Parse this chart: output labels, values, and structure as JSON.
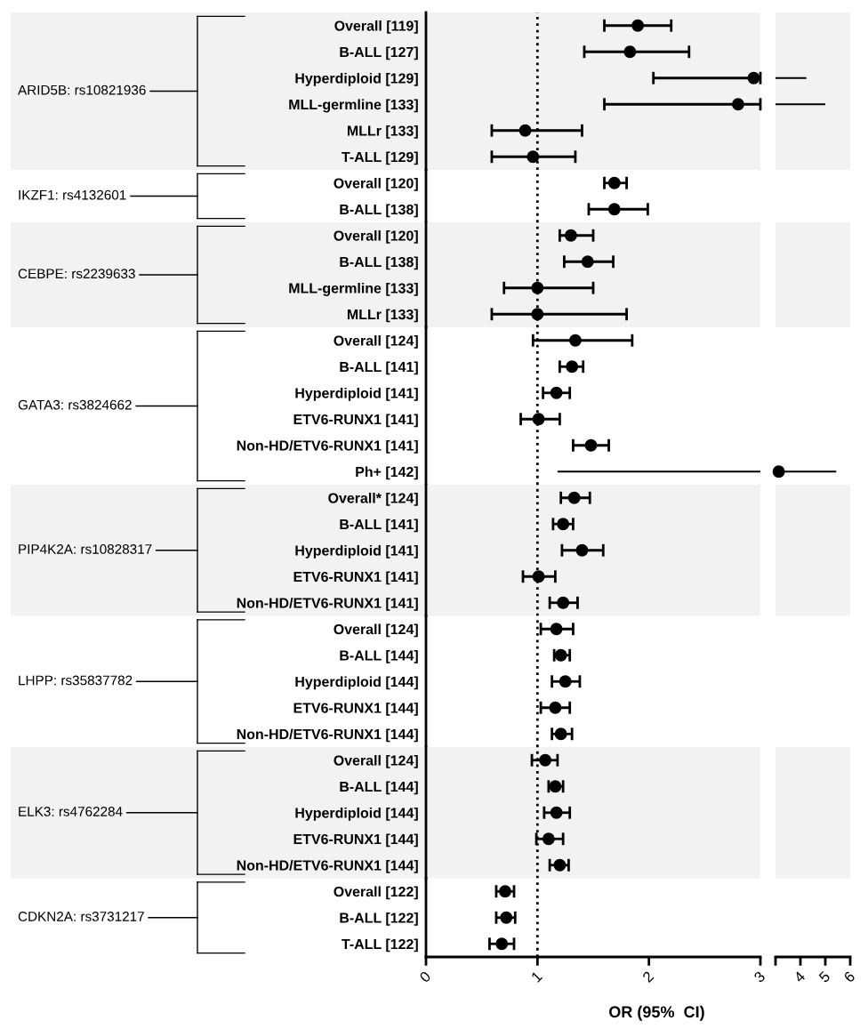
{
  "chart_data": [
    {
      "type": "scatter",
      "orientation": "horizontal",
      "marker": "circle",
      "grid": false,
      "tick_labels": "y",
      "ylabel": "ARID5B: rs10821936",
      "categories": [
        "Overall [119]",
        "B-ALL [127]",
        "Hyperdiploid [129]",
        "MLL-germline [133]",
        "MLLr [133]",
        "T-ALL [129]"
      ],
      "series": [
        {
          "color": "#000000",
          "values": [
            1.9,
            1.83,
            2.94,
            2.8,
            0.89,
            0.96
          ],
          "errors": [
            [
              1.6,
              2.2
            ],
            [
              1.42,
              2.36
            ],
            [
              2.04,
              3
            ],
            [
              1.6,
              3
            ],
            [
              0.59,
              1.4
            ],
            [
              0.59,
              1.34
            ]
          ]
        }
      ],
      "xlim": [
        0,
        3
      ],
      "xticks": [
        0,
        1,
        2,
        3
      ],
      "ref_lines": [
        {
          "axis": "x",
          "value": 1,
          "line_style": "dotted",
          "color": "#000000"
        }
      ],
      "bands": [
        {
          "axis": "y",
          "from": "Overall [119]",
          "to": "T-ALL [129]",
          "color": "#f2f2f2"
        }
      ]
    },
    {
      "type": "scatter",
      "orientation": "horizontal",
      "grid": false,
      "tick_labels": false,
      "categories": [
        "Overall [119]",
        "B-ALL [127]",
        "Hyperdiploid [129]",
        "MLL-germline [133]",
        "MLLr [133]",
        "T-ALL [129]"
      ],
      "series": [
        {
          "type": "bar",
          "color": "#000000",
          "base": [
            null,
            null,
            3,
            3,
            null,
            null
          ],
          "values": [
            null,
            null,
            1.24,
            2.0,
            null,
            null
          ]
        }
      ],
      "xlim": [
        3,
        6
      ],
      "bands": [
        {
          "axis": "y",
          "from": "Overall [119]",
          "to": "T-ALL [129]",
          "color": "#f2f2f2"
        }
      ]
    },
    {
      "type": "scatter",
      "orientation": "horizontal",
      "marker": "circle",
      "grid": false,
      "tick_labels": "y",
      "ylabel": "IKZF1: rs4132601",
      "categories": [
        "Overall [120]",
        "B-ALL [138]"
      ],
      "series": [
        {
          "color": "#000000",
          "values": [
            1.69,
            1.69
          ],
          "errors": [
            [
              1.6,
              1.8
            ],
            [
              1.46,
              1.99
            ]
          ]
        }
      ],
      "xlim": [
        0,
        3
      ],
      "xticks": [
        0,
        1,
        2,
        3
      ],
      "ref_lines": [
        {
          "axis": "x",
          "value": 1,
          "line_style": "dotted",
          "color": "#000000"
        }
      ]
    },
    {
      "type": "scatter",
      "orientation": "horizontal",
      "marker": "circle",
      "grid": false,
      "tick_labels": "y",
      "ylabel": "CEBPE: rs2239633",
      "categories": [
        "Overall [120]",
        "B-ALL [138]",
        "MLL-germline [133]",
        "MLLr [133]"
      ],
      "series": [
        {
          "color": "#000000",
          "values": [
            1.3,
            1.45,
            1.0,
            1.0
          ],
          "errors": [
            [
              1.2,
              1.5
            ],
            [
              1.24,
              1.68
            ],
            [
              0.7,
              1.5
            ],
            [
              0.59,
              1.8
            ]
          ]
        }
      ],
      "xlim": [
        0,
        3
      ],
      "xticks": [
        0,
        1,
        2,
        3
      ],
      "ref_lines": [
        {
          "axis": "x",
          "value": 1,
          "line_style": "dotted",
          "color": "#000000"
        }
      ],
      "bands": [
        {
          "axis": "y",
          "from": "Overall [120]",
          "to": "MLLr [133]",
          "color": "#f2f2f2"
        }
      ]
    },
    {
      "type": "scatter",
      "orientation": "horizontal",
      "grid": false,
      "tick_labels": false,
      "categories": [
        "Overall [120]",
        "B-ALL [138]",
        "MLL-germline [133]",
        "MLLr [133]"
      ],
      "series": [
        {
          "color": "#000000",
          "values": [
            null,
            null,
            null,
            null
          ]
        }
      ],
      "xlim": [
        3,
        6
      ],
      "bands": [
        {
          "axis": "y",
          "from": "Overall [120]",
          "to": "MLLr [133]",
          "color": "#f2f2f2"
        }
      ]
    },
    {
      "type": "scatter",
      "orientation": "horizontal",
      "marker": "circle",
      "grid": false,
      "tick_labels": "y",
      "ylabel": "GATA3: rs3824662",
      "categories": [
        "Overall [124]",
        "B-ALL [141]",
        "Hyperdiploid [141]",
        "ETV6-RUNX1 [141]",
        "Non-HD/ETV6-RUNX1 [141]",
        "Ph+ [142]"
      ],
      "series": [
        {
          "color": "#000000",
          "values": [
            1.34,
            1.31,
            1.17,
            1.01,
            1.48,
            null
          ],
          "errors": [
            [
              0.96,
              1.85
            ],
            [
              1.2,
              1.41
            ],
            [
              1.05,
              1.29
            ],
            [
              0.85,
              1.2
            ],
            [
              1.32,
              1.64
            ],
            null
          ]
        },
        {
          "type": "bar",
          "color": "#000000",
          "base": [
            null,
            null,
            null,
            null,
            null,
            1.18
          ],
          "values": [
            null,
            null,
            null,
            null,
            null,
            1.82
          ]
        }
      ],
      "xlim": [
        0,
        3
      ],
      "xticks": [
        0,
        1,
        2,
        3
      ],
      "ref_lines": [
        {
          "axis": "x",
          "value": 1,
          "line_style": "dotted",
          "color": "#000000"
        }
      ]
    },
    {
      "type": "scatter",
      "orientation": "horizontal",
      "marker": "circle",
      "grid": false,
      "tick_labels": false,
      "categories": [
        "Overall [124]",
        "B-ALL [141]",
        "Hyperdiploid [141]",
        "ETV6-RUNX1 [141]",
        "Non-HD/ETV6-RUNX1 [141]",
        "Ph+ [142]"
      ],
      "series": [
        {
          "type": "bar",
          "color": "#000000",
          "base": [
            null,
            null,
            null,
            null,
            null,
            3
          ],
          "values": [
            null,
            null,
            null,
            null,
            null,
            2.44
          ]
        },
        {
          "color": "#000000",
          "values": [
            null,
            null,
            null,
            null,
            null,
            3.13
          ]
        }
      ],
      "xlim": [
        3,
        6
      ]
    },
    {
      "type": "scatter",
      "orientation": "horizontal",
      "marker": "circle",
      "grid": false,
      "tick_labels": "y",
      "ylabel": "PIP4K2A: rs10828317",
      "categories": [
        "Overall* [124]",
        "B-ALL [141]",
        "Hyperdiploid [141]",
        "ETV6-RUNX1 [141]",
        "Non-HD/ETV6-RUNX1 [141]"
      ],
      "series": [
        {
          "color": "#000000",
          "values": [
            1.33,
            1.23,
            1.4,
            1.01,
            1.23
          ],
          "errors": [
            [
              1.21,
              1.47
            ],
            [
              1.14,
              1.32
            ],
            [
              1.22,
              1.59
            ],
            [
              0.87,
              1.16
            ],
            [
              1.11,
              1.36
            ]
          ]
        }
      ],
      "xlim": [
        0,
        3
      ],
      "xticks": [
        0,
        1,
        2,
        3
      ],
      "ref_lines": [
        {
          "axis": "x",
          "value": 1,
          "line_style": "dotted",
          "color": "#000000"
        }
      ],
      "bands": [
        {
          "axis": "y",
          "from": "Overall* [124]",
          "to": "Non-HD/ETV6-RUNX1 [141]",
          "color": "#f2f2f2"
        }
      ]
    },
    {
      "type": "scatter",
      "orientation": "horizontal",
      "grid": false,
      "tick_labels": false,
      "categories": [
        "Overall* [124]",
        "B-ALL [141]",
        "Hyperdiploid [141]",
        "ETV6-RUNX1 [141]",
        "Non-HD/ETV6-RUNX1 [141]"
      ],
      "series": [
        {
          "color": "#000000",
          "values": [
            null,
            null,
            null,
            null,
            null
          ]
        }
      ],
      "xlim": [
        3,
        6
      ],
      "bands": [
        {
          "axis": "y",
          "from": "Overall* [124]",
          "to": "Non-HD/ETV6-RUNX1 [141]",
          "color": "#f2f2f2"
        }
      ]
    },
    {
      "type": "scatter",
      "orientation": "horizontal",
      "marker": "circle",
      "grid": false,
      "tick_labels": "y",
      "ylabel": "LHPP: rs35837782",
      "categories": [
        "Overall [124]",
        "B-ALL [144]",
        "Hyperdiploid [144]",
        "ETV6-RUNX1 [144]",
        "Non-HD/ETV6-RUNX1 [144]"
      ],
      "series": [
        {
          "color": "#000000",
          "values": [
            1.17,
            1.21,
            1.25,
            1.16,
            1.21
          ],
          "errors": [
            [
              1.03,
              1.32
            ],
            [
              1.15,
              1.29
            ],
            [
              1.13,
              1.38
            ],
            [
              1.03,
              1.29
            ],
            [
              1.13,
              1.31
            ]
          ]
        }
      ],
      "xlim": [
        0,
        3
      ],
      "xticks": [
        0,
        1,
        2,
        3
      ],
      "ref_lines": [
        {
          "axis": "x",
          "value": 1,
          "line_style": "dotted",
          "color": "#000000"
        }
      ]
    },
    {
      "type": "scatter",
      "orientation": "horizontal",
      "marker": "circle",
      "grid": false,
      "tick_labels": "y",
      "ylabel": "ELK3: rs4762284",
      "categories": [
        "Overall [124]",
        "B-ALL [144]",
        "Hyperdiploid [144]",
        "ETV6-RUNX1 [144]",
        "Non-HD/ETV6-RUNX1 [144]"
      ],
      "series": [
        {
          "color": "#000000",
          "values": [
            1.07,
            1.16,
            1.17,
            1.1,
            1.2
          ],
          "errors": [
            [
              0.95,
              1.18
            ],
            [
              1.1,
              1.23
            ],
            [
              1.06,
              1.29
            ],
            [
              0.99,
              1.23
            ],
            [
              1.11,
              1.28
            ]
          ]
        }
      ],
      "xlim": [
        0,
        3
      ],
      "xticks": [
        0,
        1,
        2,
        3
      ],
      "ref_lines": [
        {
          "axis": "x",
          "value": 1,
          "line_style": "dotted",
          "color": "#000000"
        }
      ],
      "bands": [
        {
          "axis": "y",
          "from": "Overall [124]",
          "to": "Non-HD/ETV6-RUNX1 [144]",
          "color": "#f2f2f2"
        }
      ]
    },
    {
      "type": "scatter",
      "orientation": "horizontal",
      "grid": false,
      "tick_labels": false,
      "categories": [
        "Overall [124]",
        "B-ALL [144]",
        "Hyperdiploid [144]",
        "ETV6-RUNX1 [144]",
        "Non-HD/ETV6-RUNX1 [144]"
      ],
      "series": [
        {
          "color": "#000000",
          "values": [
            null,
            null,
            null,
            null,
            null
          ]
        }
      ],
      "xlim": [
        3,
        6
      ],
      "bands": [
        {
          "axis": "y",
          "from": "Overall [124]",
          "to": "Non-HD/ETV6-RUNX1 [144]",
          "color": "#f2f2f2"
        }
      ]
    },
    {
      "type": "scatter",
      "orientation": "horizontal",
      "marker": "circle",
      "grid": false,
      "ylabel": "CDKN2A: rs3731217",
      "xlabel": "OR (95%  CI)",
      "categories": [
        "Overall [122]",
        "B-ALL [122]",
        "T-ALL [122]"
      ],
      "series": [
        {
          "color": "#000000",
          "values": [
            0.71,
            0.72,
            0.68
          ],
          "errors": [
            [
              0.63,
              0.79
            ],
            [
              0.63,
              0.8
            ],
            [
              0.57,
              0.79
            ]
          ]
        }
      ],
      "xlim": [
        0,
        3
      ],
      "xticks": [
        0,
        1,
        2,
        3
      ],
      "ref_lines": [
        {
          "axis": "x",
          "value": 1,
          "line_style": "dotted",
          "color": "#000000"
        }
      ]
    },
    {
      "type": "scatter",
      "orientation": "horizontal",
      "grid": false,
      "tick_labels": "x",
      "categories": [
        "Overall [122]",
        "B-ALL [122]",
        "T-ALL [122]"
      ],
      "series": [
        {
          "color": "#000000",
          "values": [
            null,
            null,
            null
          ]
        }
      ],
      "xlim": [
        3,
        6
      ],
      "xticks": [
        {
          "value": 3,
          "label": null
        },
        4,
        5,
        6
      ]
    }
  ]
}
